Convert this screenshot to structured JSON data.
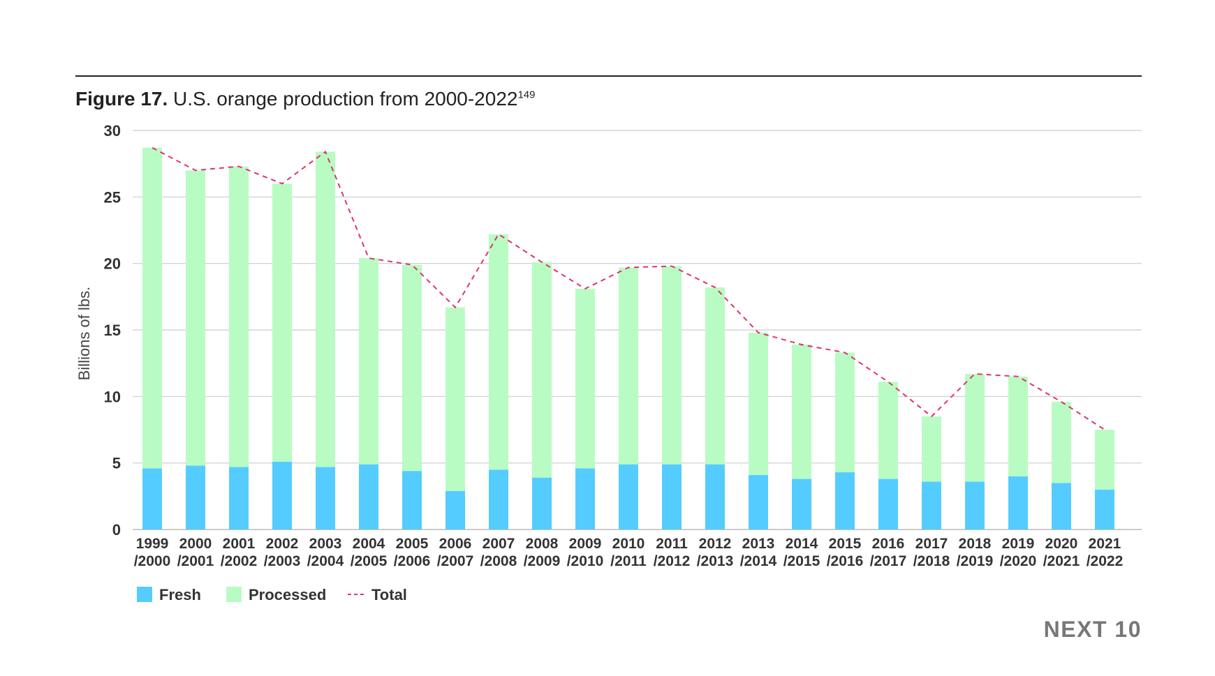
{
  "figure": {
    "label": "Figure 17.",
    "title": "U.S. orange production from 2000-2022",
    "footnote": "149"
  },
  "brand": {
    "logo_text": "NEXT 10"
  },
  "colors": {
    "fresh": "#55ccff",
    "processed": "#b8fcc4",
    "total": "#e0326f",
    "grid": "#cccccc",
    "axis_text": "#333333"
  },
  "chart_data": {
    "type": "bar",
    "stacked": true,
    "title": "U.S. orange production from 2000-2022",
    "xlabel": "",
    "ylabel": "Billions of lbs.",
    "ylim": [
      0,
      30
    ],
    "yticks": [
      0,
      5,
      10,
      15,
      20,
      25,
      30
    ],
    "grid": true,
    "legend_position": "bottom-left",
    "categories": [
      [
        "1999",
        "/2000"
      ],
      [
        "2000",
        "/2001"
      ],
      [
        "2001",
        "/2002"
      ],
      [
        "2002",
        "/2003"
      ],
      [
        "2003",
        "/2004"
      ],
      [
        "2004",
        "/2005"
      ],
      [
        "2005",
        "/2006"
      ],
      [
        "2006",
        "/2007"
      ],
      [
        "2007",
        "/2008"
      ],
      [
        "2008",
        "/2009"
      ],
      [
        "2009",
        "/2010"
      ],
      [
        "2010",
        "/2011"
      ],
      [
        "2011",
        "/2012"
      ],
      [
        "2012",
        "/2013"
      ],
      [
        "2013",
        "/2014"
      ],
      [
        "2014",
        "/2015"
      ],
      [
        "2015",
        "/2016"
      ],
      [
        "2016",
        "/2017"
      ],
      [
        "2017",
        "/2018"
      ],
      [
        "2018",
        "/2019"
      ],
      [
        "2019",
        "/2020"
      ],
      [
        "2020",
        "/2021"
      ],
      [
        "2021",
        "/2022"
      ]
    ],
    "series": [
      {
        "name": "Fresh",
        "kind": "bar",
        "values": [
          4.6,
          4.8,
          4.7,
          5.1,
          4.7,
          4.9,
          4.4,
          2.9,
          4.5,
          3.9,
          4.6,
          4.9,
          4.9,
          4.9,
          4.1,
          3.8,
          4.3,
          3.8,
          3.6,
          3.6,
          4.0,
          3.5,
          3.0
        ]
      },
      {
        "name": "Processed",
        "kind": "bar",
        "values": [
          24.1,
          22.2,
          22.6,
          20.9,
          23.7,
          15.5,
          15.5,
          13.8,
          17.7,
          16.2,
          13.5,
          14.8,
          14.9,
          13.3,
          10.7,
          10.1,
          9.0,
          7.3,
          4.9,
          8.1,
          7.5,
          6.1,
          4.5
        ]
      },
      {
        "name": "Total",
        "kind": "line",
        "dashed": true,
        "values": [
          28.7,
          27.0,
          27.3,
          26.0,
          28.4,
          20.4,
          19.9,
          16.7,
          22.2,
          20.1,
          18.1,
          19.7,
          19.8,
          18.2,
          14.8,
          13.9,
          13.3,
          11.1,
          8.5,
          11.7,
          11.5,
          9.6,
          7.5
        ]
      }
    ]
  }
}
